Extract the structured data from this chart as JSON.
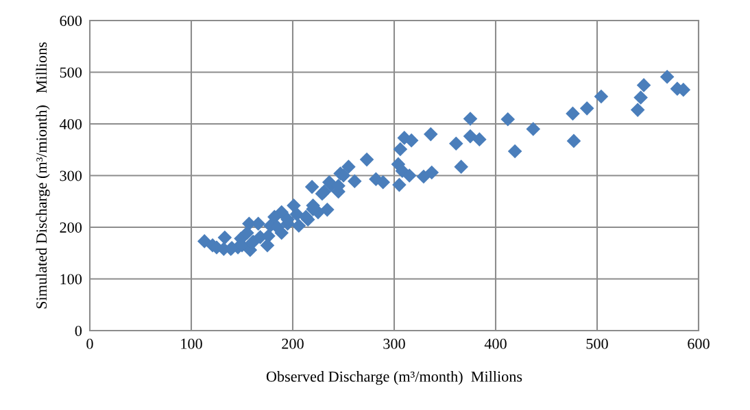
{
  "chart_data": {
    "type": "scatter",
    "xlabel": "Observed Discharge (m³/month)  Millions",
    "ylabel": "Simulated Discharge (m³/mionth)   Millions",
    "xlim": [
      0,
      600
    ],
    "xticks": [
      0,
      100,
      200,
      300,
      400,
      500,
      600
    ],
    "ylim": [
      0,
      600
    ],
    "yticks": [
      0,
      100,
      200,
      300,
      400,
      500,
      600
    ],
    "grid": true,
    "marker": "diamond",
    "series": [
      {
        "color": "#4a7ebb",
        "x": [
          113,
          121,
          125,
          132,
          133,
          139,
          146,
          149,
          157,
          158,
          166,
          161,
          155,
          168,
          176,
          178,
          182,
          189,
          189,
          195,
          201,
          206,
          204,
          213,
          219,
          220,
          225,
          234,
          231,
          238,
          245,
          247,
          255,
          261,
          273,
          282,
          289,
          229,
          236,
          140,
          150,
          160,
          175,
          185,
          195,
          215,
          220,
          245,
          250,
          305,
          304,
          308,
          315,
          329,
          337,
          306,
          310,
          317,
          336,
          361,
          366,
          375,
          375,
          384,
          412,
          419,
          437,
          476,
          477,
          490,
          504,
          540,
          543,
          546,
          569,
          579,
          585
        ],
        "values": [
          173,
          165,
          161,
          158,
          180,
          158,
          161,
          178,
          207,
          156,
          207,
          172,
          189,
          181,
          183,
          203,
          220,
          189,
          229,
          207,
          242,
          203,
          225,
          220,
          278,
          242,
          229,
          234,
          269,
          282,
          269,
          304,
          317,
          289,
          331,
          293,
          287,
          265,
          287,
          160,
          165,
          170,
          165,
          200,
          215,
          215,
          235,
          280,
          300,
          282,
          322,
          309,
          300,
          298,
          306,
          351,
          373,
          368,
          380,
          362,
          317,
          410,
          376,
          370,
          409,
          347,
          390,
          420,
          367,
          430,
          453,
          427,
          451,
          475,
          491,
          468,
          466
        ]
      }
    ]
  }
}
